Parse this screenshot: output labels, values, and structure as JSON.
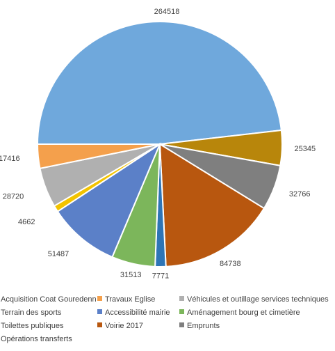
{
  "chart_data": {
    "type": "pie",
    "title": "",
    "slices": [
      {
        "label": "Acquisition Coat Gouredenn",
        "value": 264518,
        "color": "#6FA8DC",
        "label_text": "264518"
      },
      {
        "label": "Travaux Eglise",
        "value": 25345,
        "color": "#B8860B",
        "label_text": "25345"
      },
      {
        "label": "Véhicules et outillage services techniques",
        "value": 32766,
        "color": "#7F7F7F",
        "label_text": "32766"
      },
      {
        "label": "Voirie 2017",
        "value": 84738,
        "color": "#B8570F",
        "label_text": "84738"
      },
      {
        "label": "Opérations transferts",
        "value": 7771,
        "color": "#2E75B6",
        "label_text": "7771"
      },
      {
        "label": "Aménagement bourg et cimetière",
        "value": 31513,
        "color": "#7CB65B",
        "label_text": "31513"
      },
      {
        "label": "Accessibilité mairie",
        "value": 51487,
        "color": "#5B80C8",
        "label_text": "51487"
      },
      {
        "label": "Toilettes publiques",
        "value": 4662,
        "color": "#F2C300",
        "label_text": "4662"
      },
      {
        "label": "Terrain des sports",
        "value": 28720,
        "color": "#B0B0B0",
        "label_text": "28720"
      },
      {
        "label": "Emprunts",
        "value": 17416,
        "color": "#F4A04C",
        "label_text": "17416"
      }
    ],
    "legend": {
      "placement": "bottom",
      "items": [
        {
          "text": "Acquisition Coat Gouredenn",
          "color": "#6FA8DC"
        },
        {
          "text": "Travaux Eglise",
          "color": "#F4A04C"
        },
        {
          "text": "Véhicules et outillage services techniques",
          "color": "#B0B0B0"
        },
        {
          "text": "Terrain des sports",
          "color": "#F2C300"
        },
        {
          "text": "Accessibilité mairie",
          "color": "#5B80C8"
        },
        {
          "text": "Aménagement bourg et cimetière",
          "color": "#7CB65B"
        },
        {
          "text": "Toilettes publiques",
          "color": "#2E75B6"
        },
        {
          "text": "Voirie 2017",
          "color": "#B8570F"
        },
        {
          "text": "Emprunts",
          "color": "#7F7F7F"
        },
        {
          "text": "Opérations transferts",
          "color": "#B8860B"
        }
      ]
    }
  }
}
